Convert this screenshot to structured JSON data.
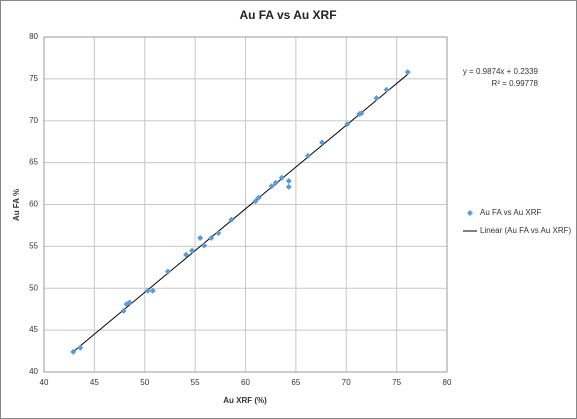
{
  "chart_data": {
    "type": "scatter",
    "title": "Au FA vs Au XRF",
    "x_label": "Au XRF (%)",
    "y_label": "Au FA %",
    "xlim": [
      40,
      80
    ],
    "ylim": [
      40,
      80
    ],
    "xticks": [
      40,
      45,
      50,
      55,
      60,
      65,
      70,
      75,
      80
    ],
    "yticks": [
      40,
      45,
      50,
      55,
      60,
      65,
      70,
      75,
      80
    ],
    "grid": true,
    "legend": "right",
    "trendline_equation": "y = 0.9874x + 0.2339",
    "trendline_r2": "R² = 0.99778",
    "trendline_name": "Linear (Au FA vs Au XRF)",
    "trendline_color": "#000000",
    "series": [
      {
        "name": "Au FA vs Au XRF",
        "color": "#5b9bd5",
        "x": [
          42.9,
          43.6,
          47.9,
          48.2,
          48.5,
          50.3,
          50.8,
          52.3,
          54.1,
          54.7,
          55.5,
          55.9,
          56.6,
          57.3,
          58.6,
          61.0,
          61.3,
          62.6,
          63.0,
          63.6,
          64.3,
          64.3,
          66.2,
          67.6,
          70.1,
          71.3,
          71.5,
          73.0,
          74.0,
          76.1
        ],
        "values": [
          42.4,
          42.9,
          47.3,
          48.1,
          48.3,
          49.7,
          49.7,
          52.0,
          54.0,
          54.5,
          56.0,
          55.1,
          56.0,
          56.6,
          58.2,
          60.4,
          60.8,
          62.2,
          62.6,
          63.2,
          62.1,
          62.8,
          65.8,
          67.4,
          69.6,
          70.8,
          70.9,
          72.7,
          73.7,
          75.8
        ]
      }
    ]
  }
}
